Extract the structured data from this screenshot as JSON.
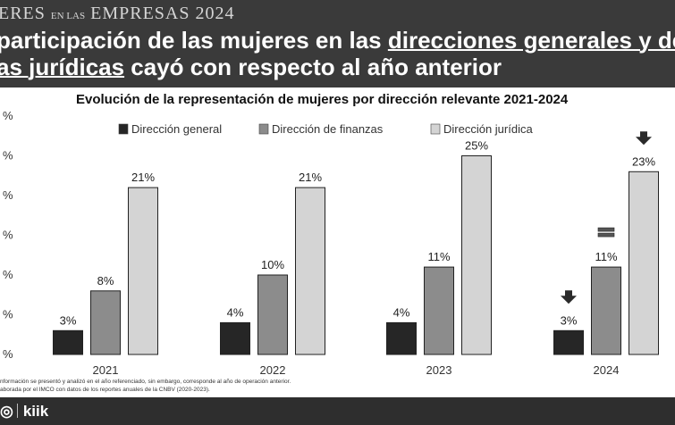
{
  "header": {
    "brand_main": "ERES",
    "brand_small": "EN LAS",
    "brand_rest": "EMPRESAS 2024",
    "title_line1_a": "participación de las mujeres en las ",
    "title_line1_u": "direcciones generales y de",
    "title_line2_u": "as jurídicas",
    "title_line2_b": " cayó con respecto al año anterior"
  },
  "footer": {
    "logo_text": "kiik"
  },
  "notes": [
    "nformación se presentó y analizó en el año referenciado, sin embargo, corresponde al año de operación anterior.",
    "aborada por el IMCO con datos de los reportes anuales de la CNBV (2020-2023)."
  ],
  "chart_data": {
    "type": "bar",
    "title": "Evolución de la representación de mujeres por dirección relevante 2021-2024",
    "categories": [
      "2021",
      "2022",
      "2023",
      "2024"
    ],
    "series": [
      {
        "name": "Dirección general",
        "values": [
          3,
          4,
          4,
          3
        ],
        "labels": [
          "3%",
          "4%",
          "4%",
          "3%"
        ],
        "color": "#262626"
      },
      {
        "name": "Dirección de finanzas",
        "values": [
          8,
          10,
          11,
          11
        ],
        "labels": [
          "8%",
          "10%",
          "11%",
          "11%"
        ],
        "color": "#8c8c8c"
      },
      {
        "name": "Dirección jurídica",
        "values": [
          21,
          21,
          25,
          23
        ],
        "labels": [
          "21%",
          "21%",
          "25%",
          "23%"
        ],
        "color": "#d4d4d4"
      }
    ],
    "y_tick_labels": [
      "%",
      "%",
      "%",
      "%",
      "%",
      "%",
      "%"
    ],
    "ylim": [
      0,
      30
    ],
    "legend_position": "top",
    "grid": false,
    "annotations_2024": {
      "Dirección general": "down-arrow",
      "Dirección de finanzas": "equal",
      "Dirección jurídica": "down-arrow"
    }
  }
}
